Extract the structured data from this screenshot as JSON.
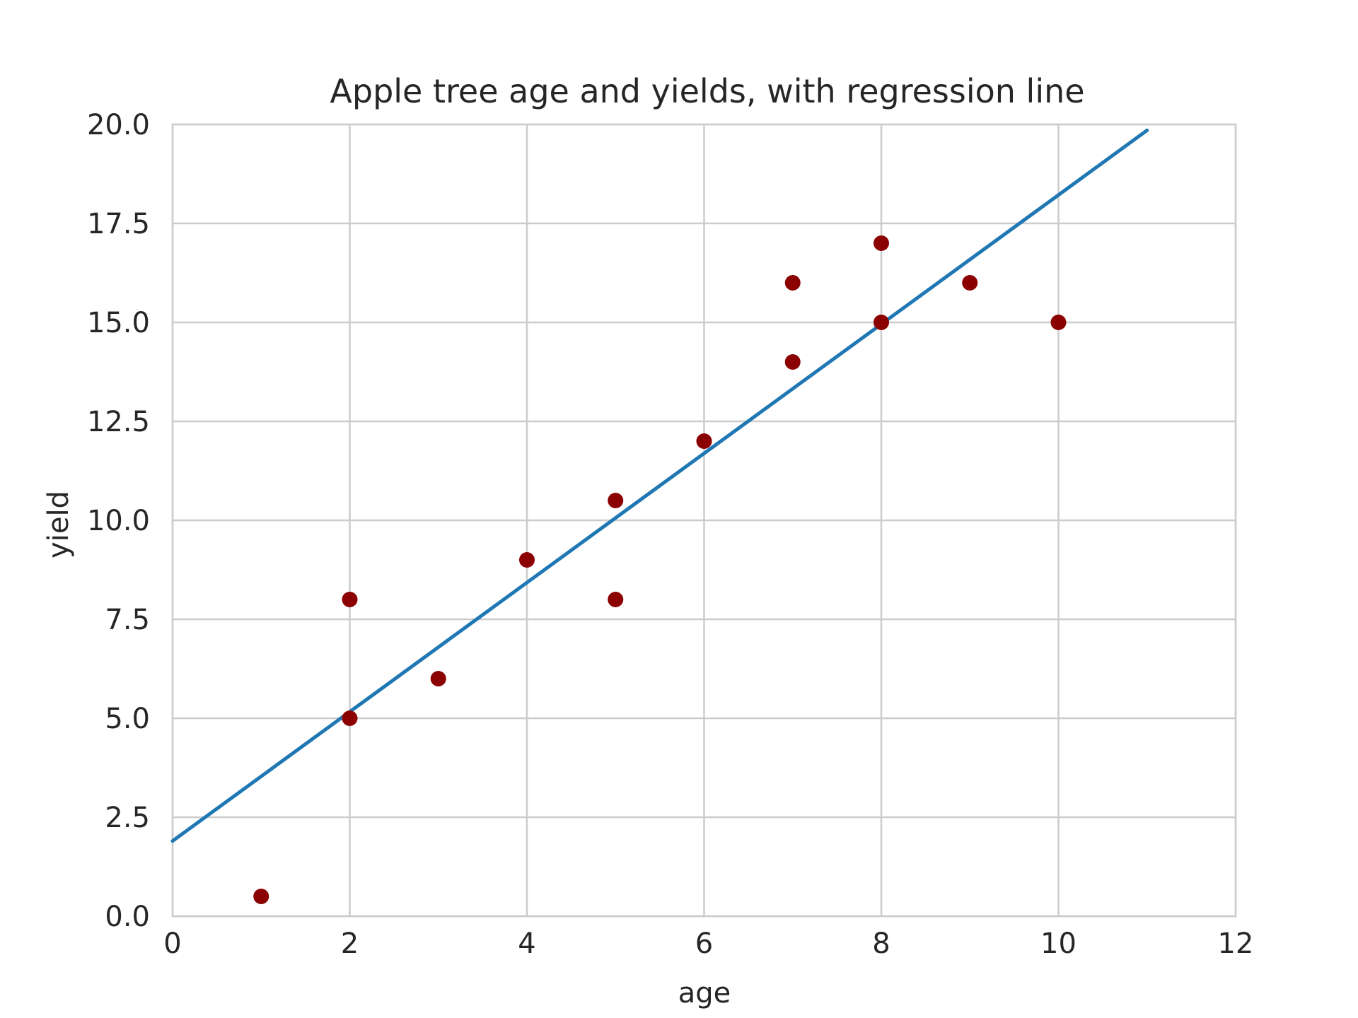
{
  "chart_data": {
    "type": "scatter",
    "title": "Apple tree age and yields, with regression line",
    "xlabel": "age",
    "ylabel": "yield",
    "xlim": [
      0,
      12
    ],
    "ylim": [
      0,
      20
    ],
    "xticks": [
      0,
      2,
      4,
      6,
      8,
      10,
      12
    ],
    "xtick_labels": [
      "0",
      "2",
      "4",
      "6",
      "8",
      "10",
      "12"
    ],
    "yticks": [
      0,
      2.5,
      5,
      7.5,
      10,
      12.5,
      15,
      17.5,
      20
    ],
    "ytick_labels": [
      "0.0",
      "2.5",
      "5.0",
      "7.5",
      "10.0",
      "12.5",
      "15.0",
      "17.5",
      "20.0"
    ],
    "grid": true,
    "series": [
      {
        "type": "scatter",
        "color": "#8b0000",
        "points": [
          [
            1,
            0.5
          ],
          [
            2,
            8
          ],
          [
            2,
            5
          ],
          [
            3,
            6
          ],
          [
            4,
            9
          ],
          [
            5,
            10.5
          ],
          [
            5,
            8
          ],
          [
            6,
            12
          ],
          [
            7,
            16
          ],
          [
            7,
            14
          ],
          [
            8,
            17
          ],
          [
            8,
            15
          ],
          [
            9,
            16
          ],
          [
            10,
            15
          ]
        ]
      },
      {
        "type": "line",
        "color": "#1f77b4",
        "points": [
          [
            0,
            1.9
          ],
          [
            11,
            19.85
          ]
        ]
      }
    ],
    "colors": {
      "grid": "#cccccc",
      "text": "#262626"
    }
  }
}
